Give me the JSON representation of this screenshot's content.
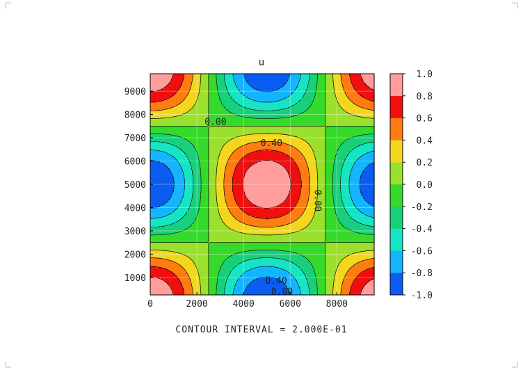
{
  "chart_data": {
    "type": "heatmap",
    "title": "u",
    "xlim": [
      0,
      9600
    ],
    "ylim": [
      250,
      9750
    ],
    "x_ticks": [
      "0",
      "2000",
      "4000",
      "6000",
      "8000"
    ],
    "y_ticks": [
      "1000",
      "2000",
      "3000",
      "4000",
      "5000",
      "6000",
      "7000",
      "8000",
      "9000"
    ],
    "x_tick_values": [
      0,
      2000,
      4000,
      6000,
      8000
    ],
    "y_tick_values": [
      1000,
      2000,
      3000,
      4000,
      5000,
      6000,
      7000,
      8000,
      9000
    ],
    "grid": true,
    "field": "u(x,y) = cos(pi*(x-5000)/5000) * cos(pi*(y-5000)/5000)",
    "colorbar": {
      "levels": [
        -1.0,
        -0.8,
        -0.6,
        -0.4,
        -0.2,
        0.0,
        0.2,
        0.4,
        0.6,
        0.8,
        1.0
      ],
      "labels": [
        "-1.0",
        "-0.8",
        "-0.6",
        "-0.4",
        "-0.2",
        "0.0",
        "0.2",
        "0.4",
        "0.6",
        "0.8",
        "1.0"
      ],
      "colors": [
        "#0b5cf0",
        "#14b4ff",
        "#16e5c4",
        "#18d07a",
        "#35da2a",
        "#9be02c",
        "#f2d71e",
        "#ff7c12",
        "#f00e0e",
        "#ff9d9d"
      ]
    },
    "contour_labels": [
      "0.00",
      "0.40",
      "0.00",
      "0.40",
      "0.00"
    ],
    "contour_interval_text": "CONTOUR INTERVAL = 2.000E-01"
  }
}
